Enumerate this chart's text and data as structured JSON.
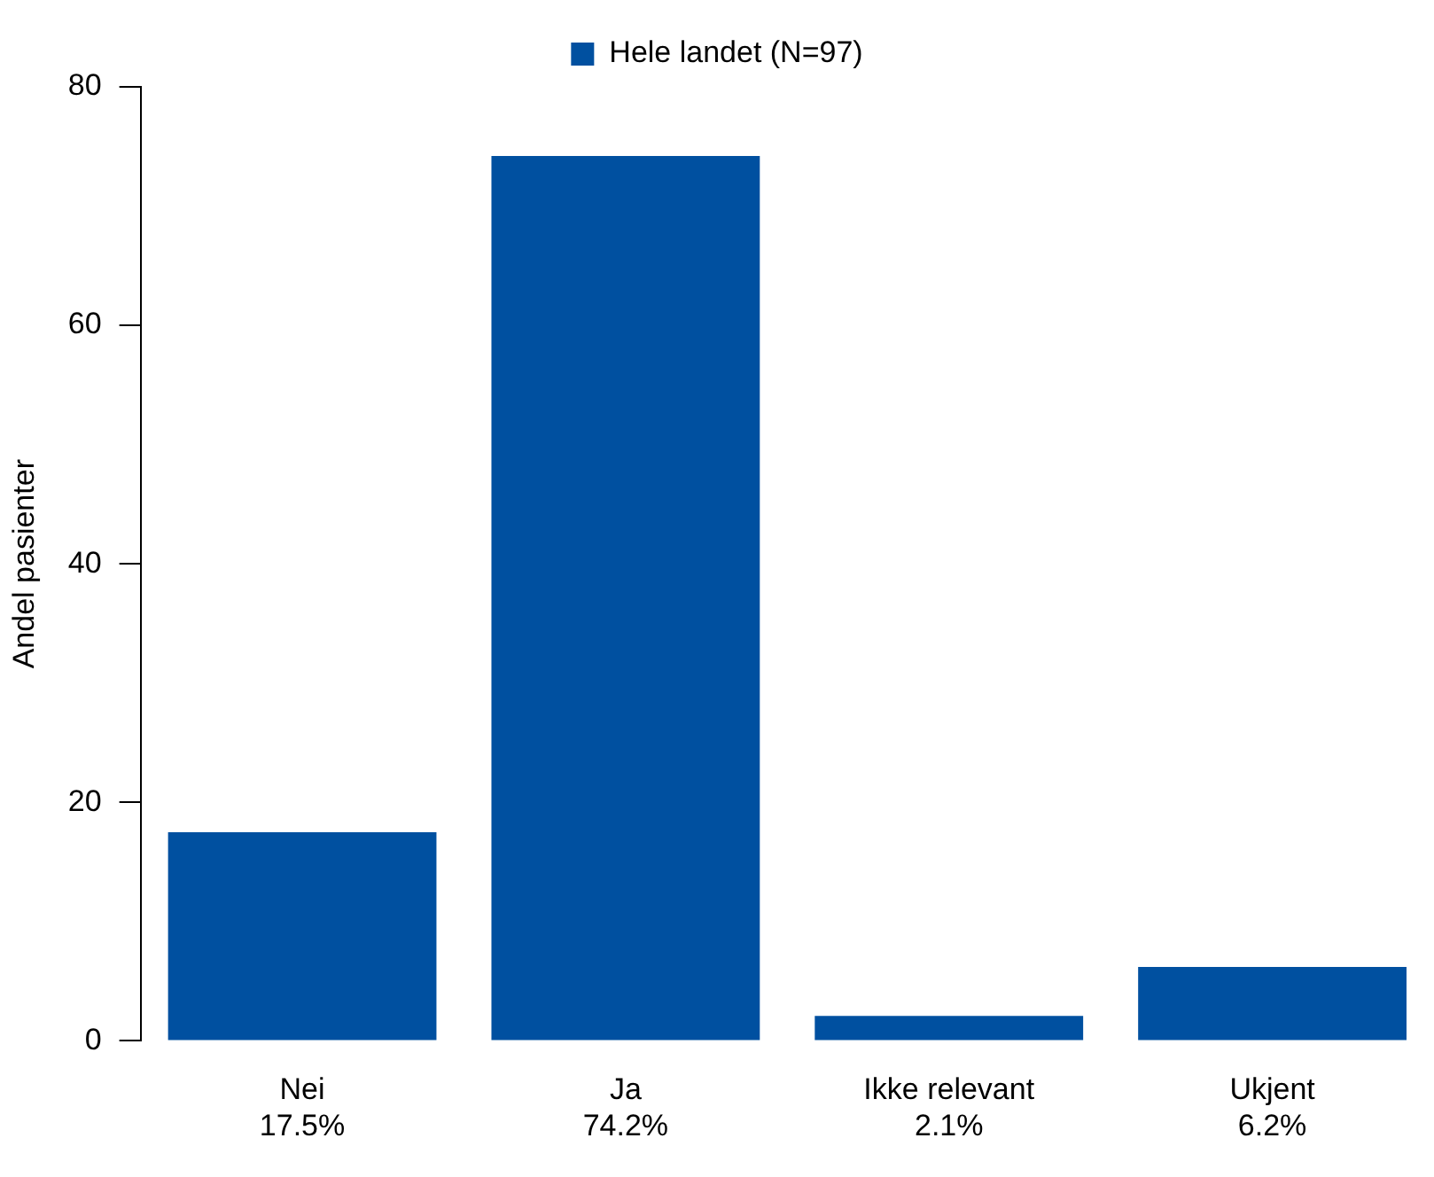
{
  "chart_data": {
    "type": "bar",
    "ylabel": "Andel pasienter",
    "categories": [
      "Nei",
      "Ja",
      "Ikke relevant",
      "Ukjent"
    ],
    "series": [
      {
        "name": "Hele landet (N=97)",
        "color": "#0050a0",
        "values": [
          17.5,
          74.2,
          2.1,
          6.2
        ],
        "value_labels": [
          "17.5%",
          "74.2%",
          "2.1%",
          "6.2%"
        ]
      }
    ],
    "ylim": [
      0,
      80
    ],
    "yticks": [
      0,
      20,
      40,
      60,
      80
    ],
    "grid": false,
    "legend": "top"
  }
}
